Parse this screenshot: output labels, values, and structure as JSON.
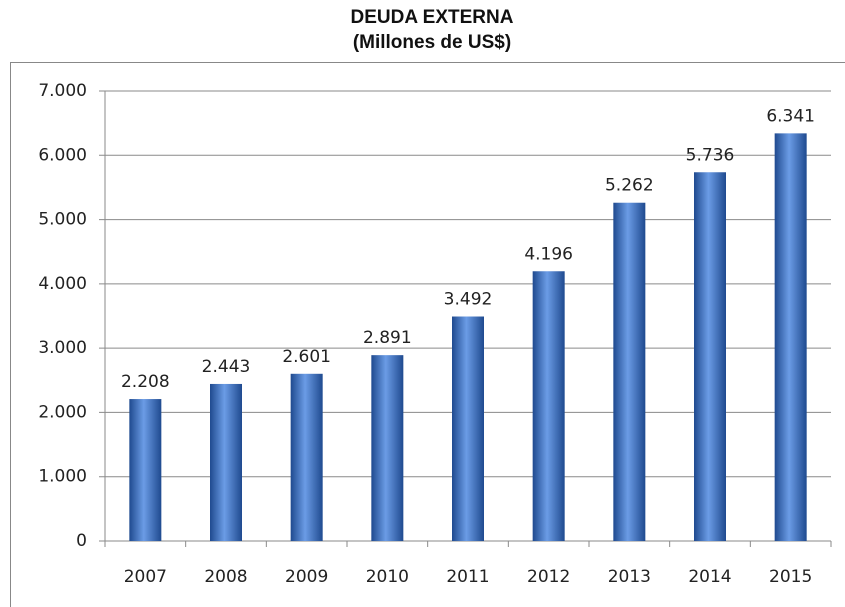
{
  "chart_data": {
    "type": "bar",
    "title": "DEUDA EXTERNA",
    "subtitle": "(Millones de US$)",
    "categories": [
      "2007",
      "2008",
      "2009",
      "2010",
      "2011",
      "2012",
      "2013",
      "2014",
      "2015"
    ],
    "values": [
      2208,
      2443,
      2601,
      2891,
      3492,
      4196,
      5262,
      5736,
      6341
    ],
    "value_labels": [
      "2.208",
      "2.443",
      "2.601",
      "2.891",
      "3.492",
      "4.196",
      "5.262",
      "5.736",
      "6.341"
    ],
    "color": "#3a6fc4",
    "ylim": [
      0,
      7000
    ],
    "yticks": [
      0,
      {
        "value": 1000,
        "label": "1.000"
      },
      {
        "value": 2000,
        "label": "2.000"
      },
      {
        "value": 3000,
        "label": "3.000"
      },
      {
        "value": 4000,
        "label": "4.000"
      },
      {
        "value": 5000,
        "label": "5.000"
      },
      {
        "value": 6000,
        "label": "6.000"
      },
      {
        "value": 7000,
        "label": "7.000"
      }
    ],
    "grid": true
  }
}
